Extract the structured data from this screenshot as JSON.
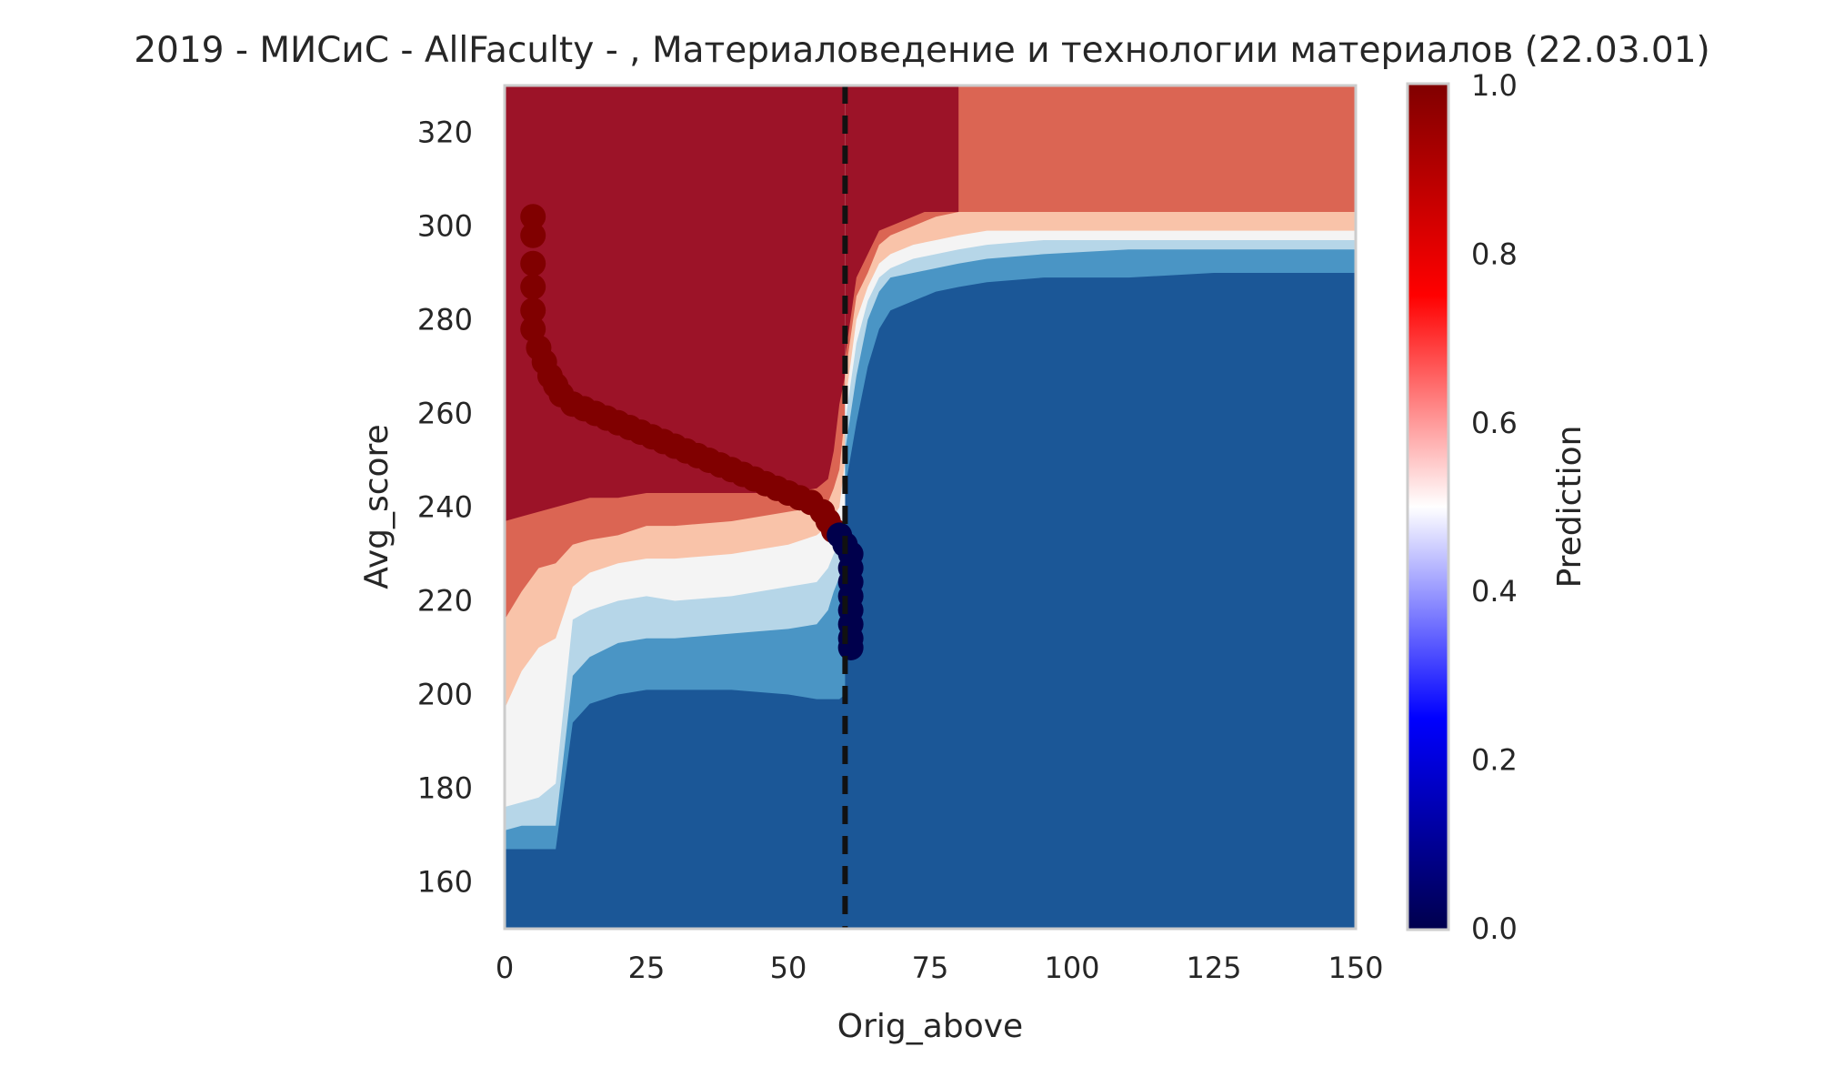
{
  "chart_data": {
    "type": "heatmap",
    "title": "2019 - МИСиС - AllFaculty - , Материаловедение и технологии материалов (22.03.01)",
    "xlabel": "Orig_above",
    "ylabel": "Avg_score",
    "colorbar_label": "Prediction",
    "xlim": [
      0,
      150
    ],
    "ylim": [
      150,
      330
    ],
    "x_ticks": [
      0,
      25,
      50,
      75,
      100,
      125,
      150
    ],
    "y_ticks": [
      160,
      180,
      200,
      220,
      240,
      260,
      280,
      300,
      320
    ],
    "colorbar_ticks": [
      "0.0",
      "0.2",
      "0.4",
      "0.6",
      "0.8",
      "1.0"
    ],
    "colorbar_range": [
      0,
      1
    ],
    "colormap": "seismic",
    "threshold_line_x": 60,
    "grid": false,
    "contour_levels": [
      {
        "range": "0.0-0.2",
        "color": "#1b5797"
      },
      {
        "range": "0.2-0.3",
        "color": "#4a95c5"
      },
      {
        "range": "0.3-0.4",
        "color": "#b6d6e8"
      },
      {
        "range": "0.4-0.5",
        "color": "#f4f4f4"
      },
      {
        "range": "0.5-0.6",
        "color": "#f9c3a9"
      },
      {
        "range": "0.6-0.8",
        "color": "#db6553"
      },
      {
        "range": "0.8-1.0",
        "color": "#9c1328"
      }
    ],
    "boundary_lower_left": {
      "x": [
        0,
        3,
        6,
        9,
        12,
        15,
        20,
        25,
        30,
        40,
        50,
        55,
        57,
        58,
        59,
        60
      ],
      "red_bottom_y": [
        237,
        238,
        239,
        240,
        241,
        242,
        242,
        243,
        243,
        243,
        243,
        244,
        246,
        252,
        262,
        268
      ],
      "orange_bottom_y": [
        216,
        222,
        227,
        228,
        232,
        233,
        234,
        236,
        236,
        237,
        239,
        240,
        241,
        244,
        248,
        260
      ],
      "salmon_bottom_y": [
        197,
        205,
        210,
        212,
        223,
        226,
        228,
        229,
        229,
        230,
        232,
        234,
        236,
        238,
        240,
        250
      ],
      "white_bottom_y": [
        176,
        177,
        178,
        181,
        216,
        218,
        220,
        221,
        220,
        221,
        223,
        224,
        227,
        230,
        232,
        240
      ],
      "lightblue_bottom_y": [
        171,
        172,
        172,
        172,
        204,
        208,
        211,
        212,
        212,
        213,
        214,
        215,
        218,
        222,
        225,
        232
      ],
      "midblue_bottom_y": [
        167,
        167,
        167,
        167,
        194,
        198,
        200,
        201,
        201,
        201,
        200,
        199,
        199,
        199,
        199,
        200
      ]
    },
    "boundary_upper_right": {
      "x": [
        60,
        62,
        64,
        66,
        68,
        72,
        76,
        80,
        85,
        95,
        110,
        125,
        150
      ],
      "red_region_top_x_limit": 80,
      "orange_bottom_y": [
        268,
        285,
        290,
        296,
        298,
        300,
        302,
        303,
        303,
        303,
        303,
        303,
        303
      ],
      "salmon_bottom_y": [
        262,
        280,
        287,
        292,
        294,
        296,
        297,
        298,
        299,
        299,
        299,
        299,
        299
      ],
      "white_bottom_y": [
        258,
        275,
        284,
        289,
        291,
        293,
        294,
        295,
        296,
        297,
        297,
        297,
        297
      ],
      "lightblue_bottom_y": [
        252,
        268,
        280,
        286,
        289,
        290,
        291,
        292,
        293,
        294,
        295,
        295,
        295
      ],
      "midblue_bottom_y": [
        244,
        258,
        270,
        278,
        282,
        284,
        286,
        287,
        288,
        289,
        289,
        290,
        290
      ]
    },
    "points": [
      {
        "x": 5,
        "y": 302,
        "v": 1
      },
      {
        "x": 5,
        "y": 298,
        "v": 1
      },
      {
        "x": 5,
        "y": 292,
        "v": 1
      },
      {
        "x": 5,
        "y": 287,
        "v": 1
      },
      {
        "x": 5,
        "y": 282,
        "v": 1
      },
      {
        "x": 5,
        "y": 278,
        "v": 1
      },
      {
        "x": 6,
        "y": 274,
        "v": 1
      },
      {
        "x": 7,
        "y": 271,
        "v": 1
      },
      {
        "x": 8,
        "y": 268,
        "v": 1
      },
      {
        "x": 9,
        "y": 266,
        "v": 1
      },
      {
        "x": 10,
        "y": 264,
        "v": 1
      },
      {
        "x": 12,
        "y": 262,
        "v": 1
      },
      {
        "x": 14,
        "y": 261,
        "v": 1
      },
      {
        "x": 16,
        "y": 260,
        "v": 1
      },
      {
        "x": 18,
        "y": 259,
        "v": 1
      },
      {
        "x": 20,
        "y": 258,
        "v": 1
      },
      {
        "x": 22,
        "y": 257,
        "v": 1
      },
      {
        "x": 24,
        "y": 256,
        "v": 1
      },
      {
        "x": 26,
        "y": 255,
        "v": 1
      },
      {
        "x": 28,
        "y": 254,
        "v": 1
      },
      {
        "x": 30,
        "y": 253,
        "v": 1
      },
      {
        "x": 32,
        "y": 252,
        "v": 1
      },
      {
        "x": 34,
        "y": 251,
        "v": 1
      },
      {
        "x": 36,
        "y": 250,
        "v": 1
      },
      {
        "x": 38,
        "y": 249,
        "v": 1
      },
      {
        "x": 40,
        "y": 248,
        "v": 1
      },
      {
        "x": 42,
        "y": 247,
        "v": 1
      },
      {
        "x": 44,
        "y": 246,
        "v": 1
      },
      {
        "x": 46,
        "y": 245,
        "v": 1
      },
      {
        "x": 48,
        "y": 244,
        "v": 1
      },
      {
        "x": 50,
        "y": 243,
        "v": 1
      },
      {
        "x": 52,
        "y": 242,
        "v": 1
      },
      {
        "x": 54,
        "y": 241,
        "v": 1
      },
      {
        "x": 56,
        "y": 239,
        "v": 1
      },
      {
        "x": 57,
        "y": 237,
        "v": 1
      },
      {
        "x": 58,
        "y": 235,
        "v": 1
      },
      {
        "x": 59,
        "y": 234,
        "v": 0
      },
      {
        "x": 60,
        "y": 232,
        "v": 0
      },
      {
        "x": 61,
        "y": 230,
        "v": 0
      },
      {
        "x": 61,
        "y": 227,
        "v": 0
      },
      {
        "x": 61,
        "y": 224,
        "v": 0
      },
      {
        "x": 61,
        "y": 221,
        "v": 0
      },
      {
        "x": 61,
        "y": 218,
        "v": 0
      },
      {
        "x": 61,
        "y": 215,
        "v": 0
      },
      {
        "x": 61,
        "y": 212,
        "v": 0
      },
      {
        "x": 61,
        "y": 210,
        "v": 0
      }
    ]
  }
}
